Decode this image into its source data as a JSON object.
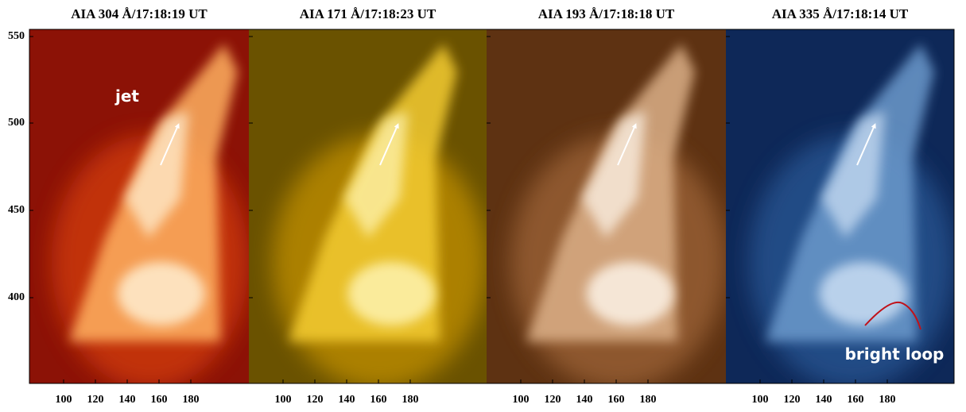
{
  "panels": [
    {
      "title": "AIA 304 Å/17:18:19 UT",
      "x_ticks": [
        100,
        120,
        140,
        160,
        180
      ]
    },
    {
      "title": "AIA 171 Å/17:18:23 UT",
      "x_ticks": [
        100,
        120,
        140,
        160,
        180
      ]
    },
    {
      "title": "AIA 193 Å/17:18:18 UT",
      "x_ticks": [
        100,
        120,
        140,
        160,
        180
      ]
    },
    {
      "title": "AIA 335 Å/17:18:14 UT",
      "x_ticks": [
        100,
        120,
        140,
        160,
        180
      ]
    }
  ],
  "y_ticks": [
    550,
    500,
    450,
    400
  ],
  "annotations": {
    "jet": "jet",
    "bright_loop": "bright loop"
  }
}
